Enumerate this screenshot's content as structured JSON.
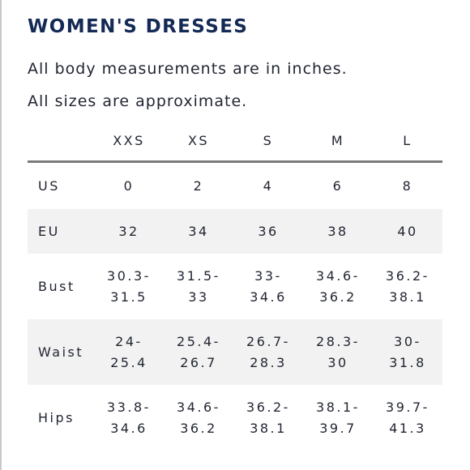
{
  "title": "WOMEN'S DRESSES",
  "notes": [
    "All body measurements are in inches.",
    "All sizes are approximate."
  ],
  "table": {
    "sizes": [
      "XXS",
      "XS",
      "S",
      "M",
      "L"
    ],
    "rows": [
      {
        "label": "US",
        "values": [
          "0",
          "2",
          "4",
          "6",
          "8"
        ]
      },
      {
        "label": "EU",
        "values": [
          "32",
          "34",
          "36",
          "38",
          "40"
        ]
      },
      {
        "label": "Bust",
        "values": [
          [
            "30.3-",
            "31.5"
          ],
          [
            "31.5-",
            "33"
          ],
          [
            "33-",
            "34.6"
          ],
          [
            "34.6-",
            "36.2"
          ],
          [
            "36.2-",
            "38.1"
          ]
        ]
      },
      {
        "label": "Waist",
        "values": [
          [
            "24-",
            "25.4"
          ],
          [
            "25.4-",
            "26.7"
          ],
          [
            "26.7-",
            "28.3"
          ],
          [
            "28.3-",
            "30"
          ],
          [
            "30-",
            "31.8"
          ]
        ]
      },
      {
        "label": "Hips",
        "values": [
          [
            "33.8-",
            "34.6"
          ],
          [
            "34.6-",
            "36.2"
          ],
          [
            "36.2-",
            "38.1"
          ],
          [
            "38.1-",
            "39.7"
          ],
          [
            "39.7-",
            "41.3"
          ]
        ]
      }
    ]
  },
  "colors": {
    "title": "#132a55",
    "text": "#222632",
    "shade": "#f2f2f2",
    "rule": "#7b7b7b"
  }
}
